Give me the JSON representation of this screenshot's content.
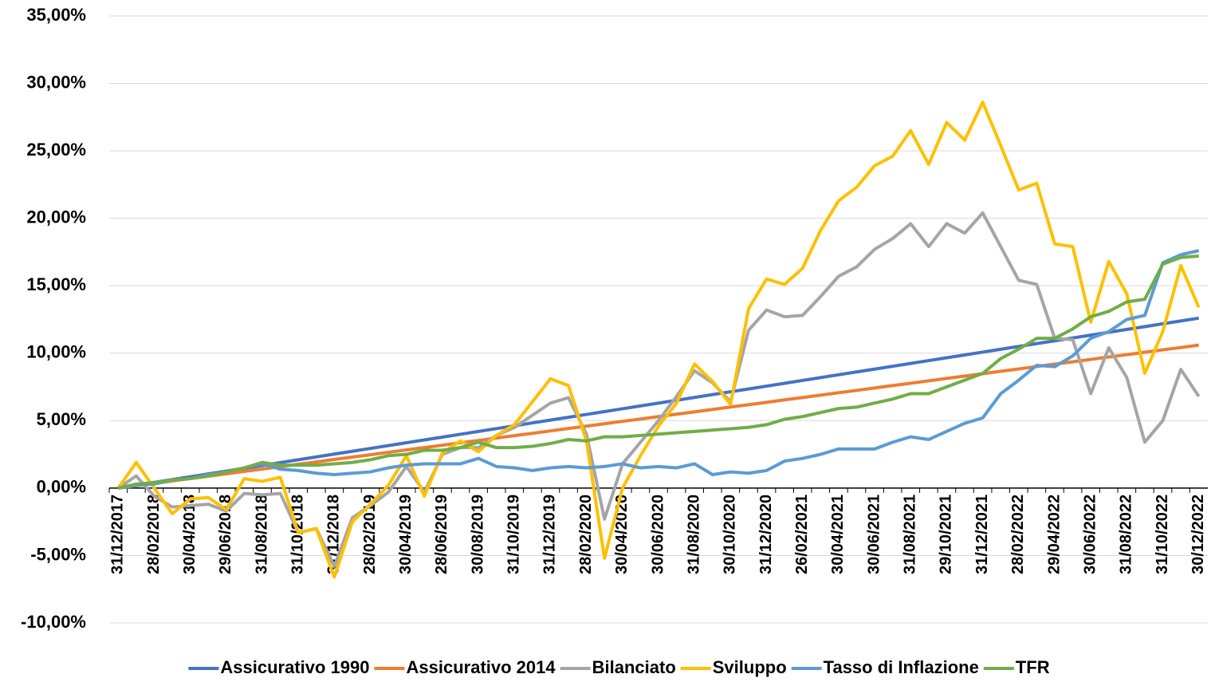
{
  "chart_data": {
    "type": "line",
    "categories": [
      "31/12/2017",
      null,
      "28/02/2018",
      null,
      "30/04/2018",
      null,
      "29/06/2018",
      null,
      "31/08/2018",
      null,
      "31/10/2018",
      null,
      "31/12/2018",
      null,
      "28/02/2019",
      null,
      "30/04/2019",
      null,
      "28/06/2019",
      null,
      "30/08/2019",
      null,
      "31/10/2019",
      null,
      "31/12/2019",
      null,
      "28/02/2020",
      null,
      "30/04/2020",
      null,
      "30/06/2020",
      null,
      "31/08/2020",
      null,
      "30/10/2020",
      null,
      "31/12/2020",
      null,
      "26/02/2021",
      null,
      "30/04/2021",
      null,
      "30/06/2021",
      null,
      "31/08/2021",
      null,
      "29/10/2021",
      null,
      "31/12/2021",
      null,
      "28/02/2022",
      null,
      "29/04/2022",
      null,
      "30/06/2022",
      null,
      "31/08/2022",
      null,
      "31/10/2022",
      null,
      "30/12/2022"
    ],
    "series": [
      {
        "name": "Assicurativo 1990",
        "color": "#4472c4",
        "values": [
          0,
          0.21,
          0.42,
          0.63,
          0.84,
          1.05,
          1.26,
          1.47,
          1.68,
          1.89,
          2.1,
          2.31,
          2.52,
          2.73,
          2.94,
          3.15,
          3.36,
          3.57,
          3.78,
          3.99,
          4.2,
          4.41,
          4.62,
          4.83,
          5.04,
          5.25,
          5.46,
          5.67,
          5.88,
          6.09,
          6.3,
          6.51,
          6.72,
          6.93,
          7.14,
          7.35,
          7.56,
          7.77,
          7.98,
          8.19,
          8.4,
          8.61,
          8.82,
          9.03,
          9.24,
          9.45,
          9.66,
          9.87,
          10.08,
          10.29,
          10.5,
          10.71,
          10.92,
          11.13,
          11.34,
          11.55,
          11.76,
          11.97,
          12.18,
          12.39,
          12.6
        ]
      },
      {
        "name": "Assicurativo 2014",
        "color": "#ed7d31",
        "values": [
          0,
          0.18,
          0.35,
          0.53,
          0.71,
          0.88,
          1.06,
          1.24,
          1.41,
          1.59,
          1.77,
          1.94,
          2.12,
          2.3,
          2.47,
          2.65,
          2.83,
          3.0,
          3.18,
          3.36,
          3.53,
          3.71,
          3.89,
          4.06,
          4.24,
          4.42,
          4.59,
          4.77,
          4.95,
          5.12,
          5.3,
          5.48,
          5.65,
          5.83,
          6.01,
          6.18,
          6.36,
          6.54,
          6.71,
          6.89,
          7.07,
          7.24,
          7.42,
          7.6,
          7.77,
          7.95,
          8.13,
          8.3,
          8.48,
          8.66,
          8.83,
          9.01,
          9.19,
          9.36,
          9.54,
          9.72,
          9.89,
          10.07,
          10.25,
          10.42,
          10.6
        ]
      },
      {
        "name": "Bilanciato",
        "color": "#a5a5a5",
        "values": [
          0,
          0.9,
          -0.6,
          -1.4,
          -1.3,
          -1.2,
          -1.7,
          -0.4,
          -0.5,
          -0.4,
          -3.3,
          -3.0,
          -5.8,
          -2.2,
          -1.3,
          -0.3,
          1.6,
          -0.3,
          2.5,
          3.0,
          3.0,
          3.9,
          4.5,
          5.4,
          6.3,
          6.7,
          4.0,
          -2.3,
          1.8,
          3.4,
          5.0,
          6.8,
          8.7,
          7.8,
          6.4,
          11.7,
          13.2,
          12.7,
          12.8,
          14.2,
          15.7,
          16.4,
          17.7,
          18.5,
          19.6,
          17.9,
          19.6,
          18.9,
          20.4,
          17.9,
          15.4,
          15.1,
          11.1,
          11.0,
          7.0,
          10.4,
          8.2,
          3.4,
          5.0,
          8.8,
          6.8
        ]
      },
      {
        "name": "Sviluppo",
        "color": "#ffc000",
        "values": [
          0,
          1.9,
          0,
          -1.9,
          -0.8,
          -0.7,
          -1.6,
          0.7,
          0.5,
          0.8,
          -3.3,
          -3.0,
          -6.6,
          -2.5,
          -1.2,
          0.2,
          2.4,
          -0.6,
          2.6,
          3.5,
          2.7,
          3.9,
          4.7,
          6.4,
          8.1,
          7.6,
          3.5,
          -5.2,
          0.0,
          2.4,
          4.6,
          6.3,
          9.2,
          7.9,
          6.2,
          13.3,
          15.5,
          15.1,
          16.3,
          19.1,
          21.3,
          22.3,
          23.9,
          24.6,
          26.5,
          24.0,
          27.1,
          25.8,
          28.6,
          25.4,
          22.1,
          22.6,
          18.1,
          17.9,
          12.3,
          16.8,
          14.4,
          8.5,
          11.6,
          16.5,
          13.4
        ]
      },
      {
        "name": "Tasso di Inflazione",
        "color": "#5b9bd5",
        "values": [
          0,
          0.2,
          0.3,
          0.6,
          0.7,
          1.0,
          1.2,
          1.5,
          1.8,
          1.4,
          1.3,
          1.1,
          1.0,
          1.1,
          1.2,
          1.5,
          1.7,
          1.8,
          1.8,
          1.8,
          2.2,
          1.6,
          1.5,
          1.3,
          1.5,
          1.6,
          1.5,
          1.6,
          1.8,
          1.5,
          1.6,
          1.5,
          1.8,
          1.0,
          1.2,
          1.1,
          1.3,
          2.0,
          2.2,
          2.5,
          2.9,
          2.9,
          2.9,
          3.4,
          3.8,
          3.6,
          4.2,
          4.8,
          5.2,
          7.0,
          8.0,
          9.1,
          9.0,
          9.8,
          11.1,
          11.6,
          12.5,
          12.8,
          16.7,
          17.3,
          17.6
        ]
      },
      {
        "name": "TFR",
        "color": "#70ad47",
        "values": [
          0,
          0.3,
          0.4,
          0.6,
          0.7,
          0.9,
          1.2,
          1.5,
          1.9,
          1.7,
          1.7,
          1.7,
          1.8,
          1.9,
          2.1,
          2.4,
          2.5,
          2.8,
          2.8,
          3.0,
          3.4,
          3.0,
          3.0,
          3.1,
          3.3,
          3.6,
          3.5,
          3.8,
          3.8,
          3.9,
          4.0,
          4.1,
          4.2,
          4.3,
          4.4,
          4.5,
          4.7,
          5.1,
          5.3,
          5.6,
          5.9,
          6.0,
          6.3,
          6.6,
          7.0,
          7.0,
          7.5,
          8.0,
          8.5,
          9.6,
          10.3,
          11.1,
          11.1,
          11.8,
          12.7,
          13.1,
          13.8,
          14.0,
          16.6,
          17.1,
          17.2
        ]
      }
    ],
    "ylim": [
      -10,
      35
    ],
    "yticks": [
      {
        "value": -10,
        "label": "-10,00%"
      },
      {
        "value": -5,
        "label": "-5,00%"
      },
      {
        "value": 0,
        "label": "0,00%"
      },
      {
        "value": 5,
        "label": "5,00%"
      },
      {
        "value": 10,
        "label": "10,00%"
      },
      {
        "value": 15,
        "label": "15,00%"
      },
      {
        "value": 20,
        "label": "20,00%"
      },
      {
        "value": 25,
        "label": "25,00%"
      },
      {
        "value": 30,
        "label": "30,00%"
      },
      {
        "value": 35,
        "label": "35,00%"
      }
    ],
    "grid": true,
    "legend": "bottom"
  }
}
